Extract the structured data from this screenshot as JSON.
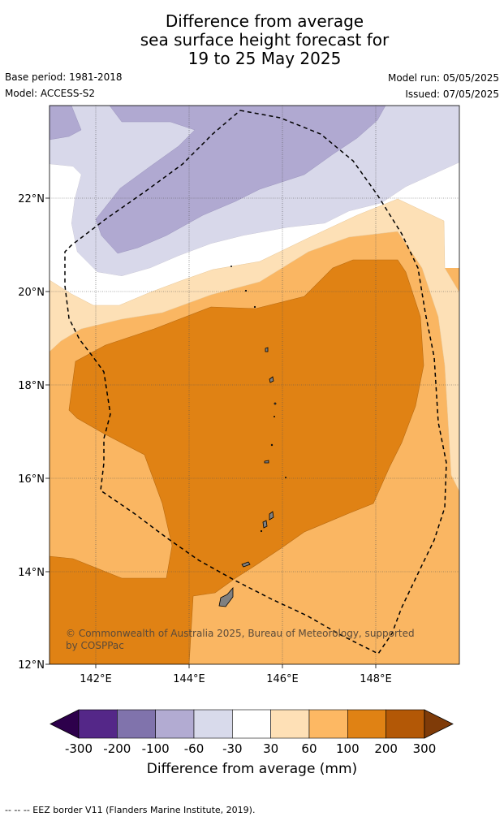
{
  "header": {
    "title_line1": "Difference from average",
    "title_line2": "sea surface height forecast for",
    "title_line3": "19 to 25 May 2025",
    "base_period": "Base period: 1981-2018",
    "model": "Model: ACCESS-S2",
    "model_run": "Model run: 05/05/2025",
    "issued": "Issued: 07/05/2025"
  },
  "map": {
    "lon_ticks": [
      "142°E",
      "144°E",
      "146°E",
      "148°E"
    ],
    "lat_ticks": [
      "22°N",
      "20°N",
      "18°N",
      "16°N",
      "14°N",
      "12°N"
    ],
    "copyright_line1": "© Commonwealth of Australia 2025, Bureau of Meteorology, supported",
    "copyright_line2": "by COSPPac",
    "colors": {
      "minus60_minus30": "#d8d8ea",
      "minus100_minus60": "#b0a9d1",
      "30_60": "#fde0b6",
      "60_100": "#fab662",
      "100_200": "#e08214",
      "land": "#808080"
    }
  },
  "colorbar": {
    "tick_labels": [
      "-300",
      "-200",
      "-100",
      "-60",
      "-30",
      "30",
      "60",
      "100",
      "200",
      "300"
    ],
    "title": "Difference from average (mm)",
    "colors": [
      "#2d004b",
      "#542788",
      "#8073ac",
      "#b2abd2",
      "#d8daeb",
      "#ffffff",
      "#fee0b6",
      "#fdb863",
      "#e08214",
      "#b35806",
      "#7f3b08"
    ]
  },
  "footnote": "--  --  -- EEZ border V11 (Flanders Marine Institute, 2019)."
}
